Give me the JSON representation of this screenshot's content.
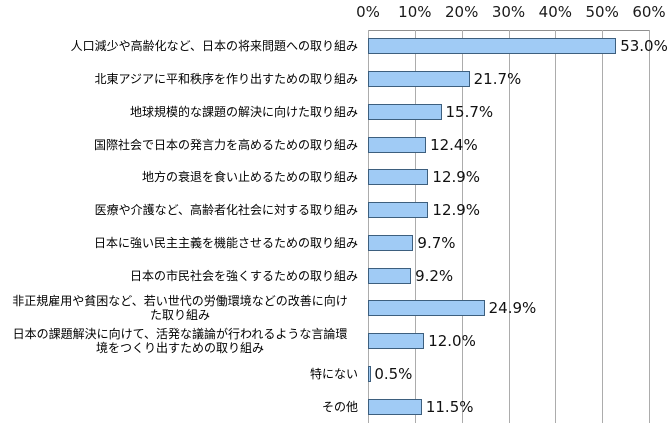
{
  "chart_data": {
    "type": "bar",
    "orientation": "horizontal",
    "title": "",
    "xlabel": "",
    "ylabel": "",
    "xlim": [
      0,
      60
    ],
    "x_tick_labels": [
      "0%",
      "10%",
      "20%",
      "30%",
      "40%",
      "50%",
      "60%"
    ],
    "x_tick_values": [
      0,
      10,
      20,
      30,
      40,
      50,
      60
    ],
    "grid": "vertical",
    "legend_position": "none",
    "categories": [
      "人口減少や高齢化など、日本の将来問題への取り組み",
      "北東アジアに平和秩序を作り出すための取り組み",
      "地球規模的な課題の解決に向けた取り組み",
      "国際社会で日本の発言力を高めるための取り組み",
      "地方の衰退を食い止めるための取り組み",
      "医療や介護など、高齢者化社会に対する取り組み",
      "日本に強い民主主義を機能させるための取り組み",
      "日本の市民社会を強くするための取り組み",
      "非正規雇用や貧困など、若い世代の労働環境などの改善に向け\nた取り組み",
      "日本の課題解決に向けて、活発な議論が行われるような言論環\n境をつくり出すための取り組み",
      "特にない",
      "その他"
    ],
    "values": [
      53.0,
      21.7,
      15.7,
      12.4,
      12.9,
      12.9,
      9.7,
      9.2,
      24.9,
      12.0,
      0.5,
      11.5
    ],
    "value_labels": [
      "53.0%",
      "21.7%",
      "15.7%",
      "12.4%",
      "12.9%",
      "12.9%",
      "9.7%",
      "9.2%",
      "24.9%",
      "12.0%",
      "0.5%",
      "11.5%"
    ],
    "colors": {
      "bar_fill": "#A0CBF5",
      "bar_border": "#3D5F7E",
      "gridline": "#ACACAC",
      "plot_border": "#8F8F8F",
      "tick_text": "#1A1A1A",
      "label_text": "#000000",
      "background": "#FFFFFF"
    }
  }
}
